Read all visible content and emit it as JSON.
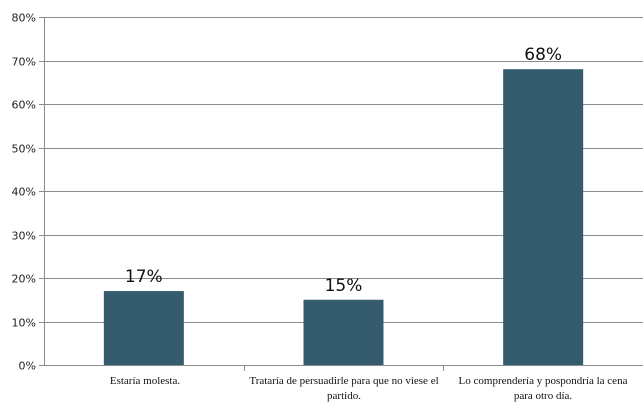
{
  "chart_data": {
    "type": "bar",
    "categories": [
      "Estaría molesta.",
      "Trataría de persuadirle para que no viese el partido.",
      "Lo comprendería y pospondría la cena para otro día."
    ],
    "values": [
      17,
      15,
      68
    ],
    "data_labels": [
      "17%",
      "15%",
      "68%"
    ],
    "title": "",
    "xlabel": "",
    "ylabel": "",
    "ylim": [
      0,
      80
    ],
    "y_ticks": [
      "0%",
      "10%",
      "20%",
      "30%",
      "40%",
      "50%",
      "60%",
      "70%",
      "80%"
    ],
    "grid": true,
    "legend": "none",
    "colors": {
      "bar": "#355C6E",
      "grid": "#8C8C8C",
      "axis": "#8C8C8C"
    }
  }
}
